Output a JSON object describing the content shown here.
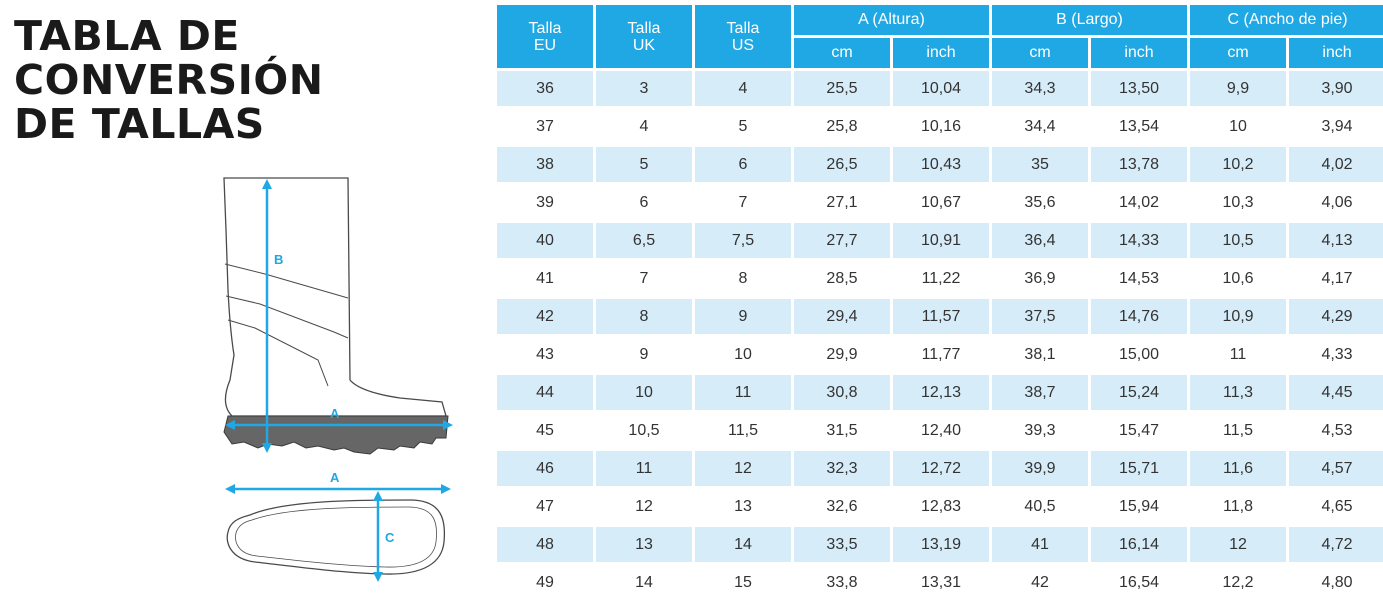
{
  "title_lines": [
    "TABLA DE",
    "CONVERSIÓN",
    "DE TALLAS"
  ],
  "diagram_labels": {
    "b": "B",
    "a_side": "A",
    "a_top": "A",
    "c": "C"
  },
  "header": {
    "talla": "Talla",
    "eu": "EU",
    "uk": "UK",
    "us": "US",
    "a": "A (Altura)",
    "b": "B (Largo)",
    "c": "C (Ancho de pie)",
    "cm": "cm",
    "inch": "inch"
  },
  "rows": [
    [
      "36",
      "3",
      "4",
      "25,5",
      "10,04",
      "34,3",
      "13,50",
      "9,9",
      "3,90"
    ],
    [
      "37",
      "4",
      "5",
      "25,8",
      "10,16",
      "34,4",
      "13,54",
      "10",
      "3,94"
    ],
    [
      "38",
      "5",
      "6",
      "26,5",
      "10,43",
      "35",
      "13,78",
      "10,2",
      "4,02"
    ],
    [
      "39",
      "6",
      "7",
      "27,1",
      "10,67",
      "35,6",
      "14,02",
      "10,3",
      "4,06"
    ],
    [
      "40",
      "6,5",
      "7,5",
      "27,7",
      "10,91",
      "36,4",
      "14,33",
      "10,5",
      "4,13"
    ],
    [
      "41",
      "7",
      "8",
      "28,5",
      "11,22",
      "36,9",
      "14,53",
      "10,6",
      "4,17"
    ],
    [
      "42",
      "8",
      "9",
      "29,4",
      "11,57",
      "37,5",
      "14,76",
      "10,9",
      "4,29"
    ],
    [
      "43",
      "9",
      "10",
      "29,9",
      "11,77",
      "38,1",
      "15,00",
      "11",
      "4,33"
    ],
    [
      "44",
      "10",
      "11",
      "30,8",
      "12,13",
      "38,7",
      "15,24",
      "11,3",
      "4,45"
    ],
    [
      "45",
      "10,5",
      "11,5",
      "31,5",
      "12,40",
      "39,3",
      "15,47",
      "11,5",
      "4,53"
    ],
    [
      "46",
      "11",
      "12",
      "32,3",
      "12,72",
      "39,9",
      "15,71",
      "11,6",
      "4,57"
    ],
    [
      "47",
      "12",
      "13",
      "32,6",
      "12,83",
      "40,5",
      "15,94",
      "11,8",
      "4,65"
    ],
    [
      "48",
      "13",
      "14",
      "33,5",
      "13,19",
      "41",
      "16,14",
      "12",
      "4,72"
    ],
    [
      "49",
      "14",
      "15",
      "33,8",
      "13,31",
      "42",
      "16,54",
      "12,2",
      "4,80"
    ]
  ],
  "colors": {
    "header": "#1fa8e3",
    "stripe": "#d6ecf8",
    "arrow": "#1fa8e3"
  }
}
